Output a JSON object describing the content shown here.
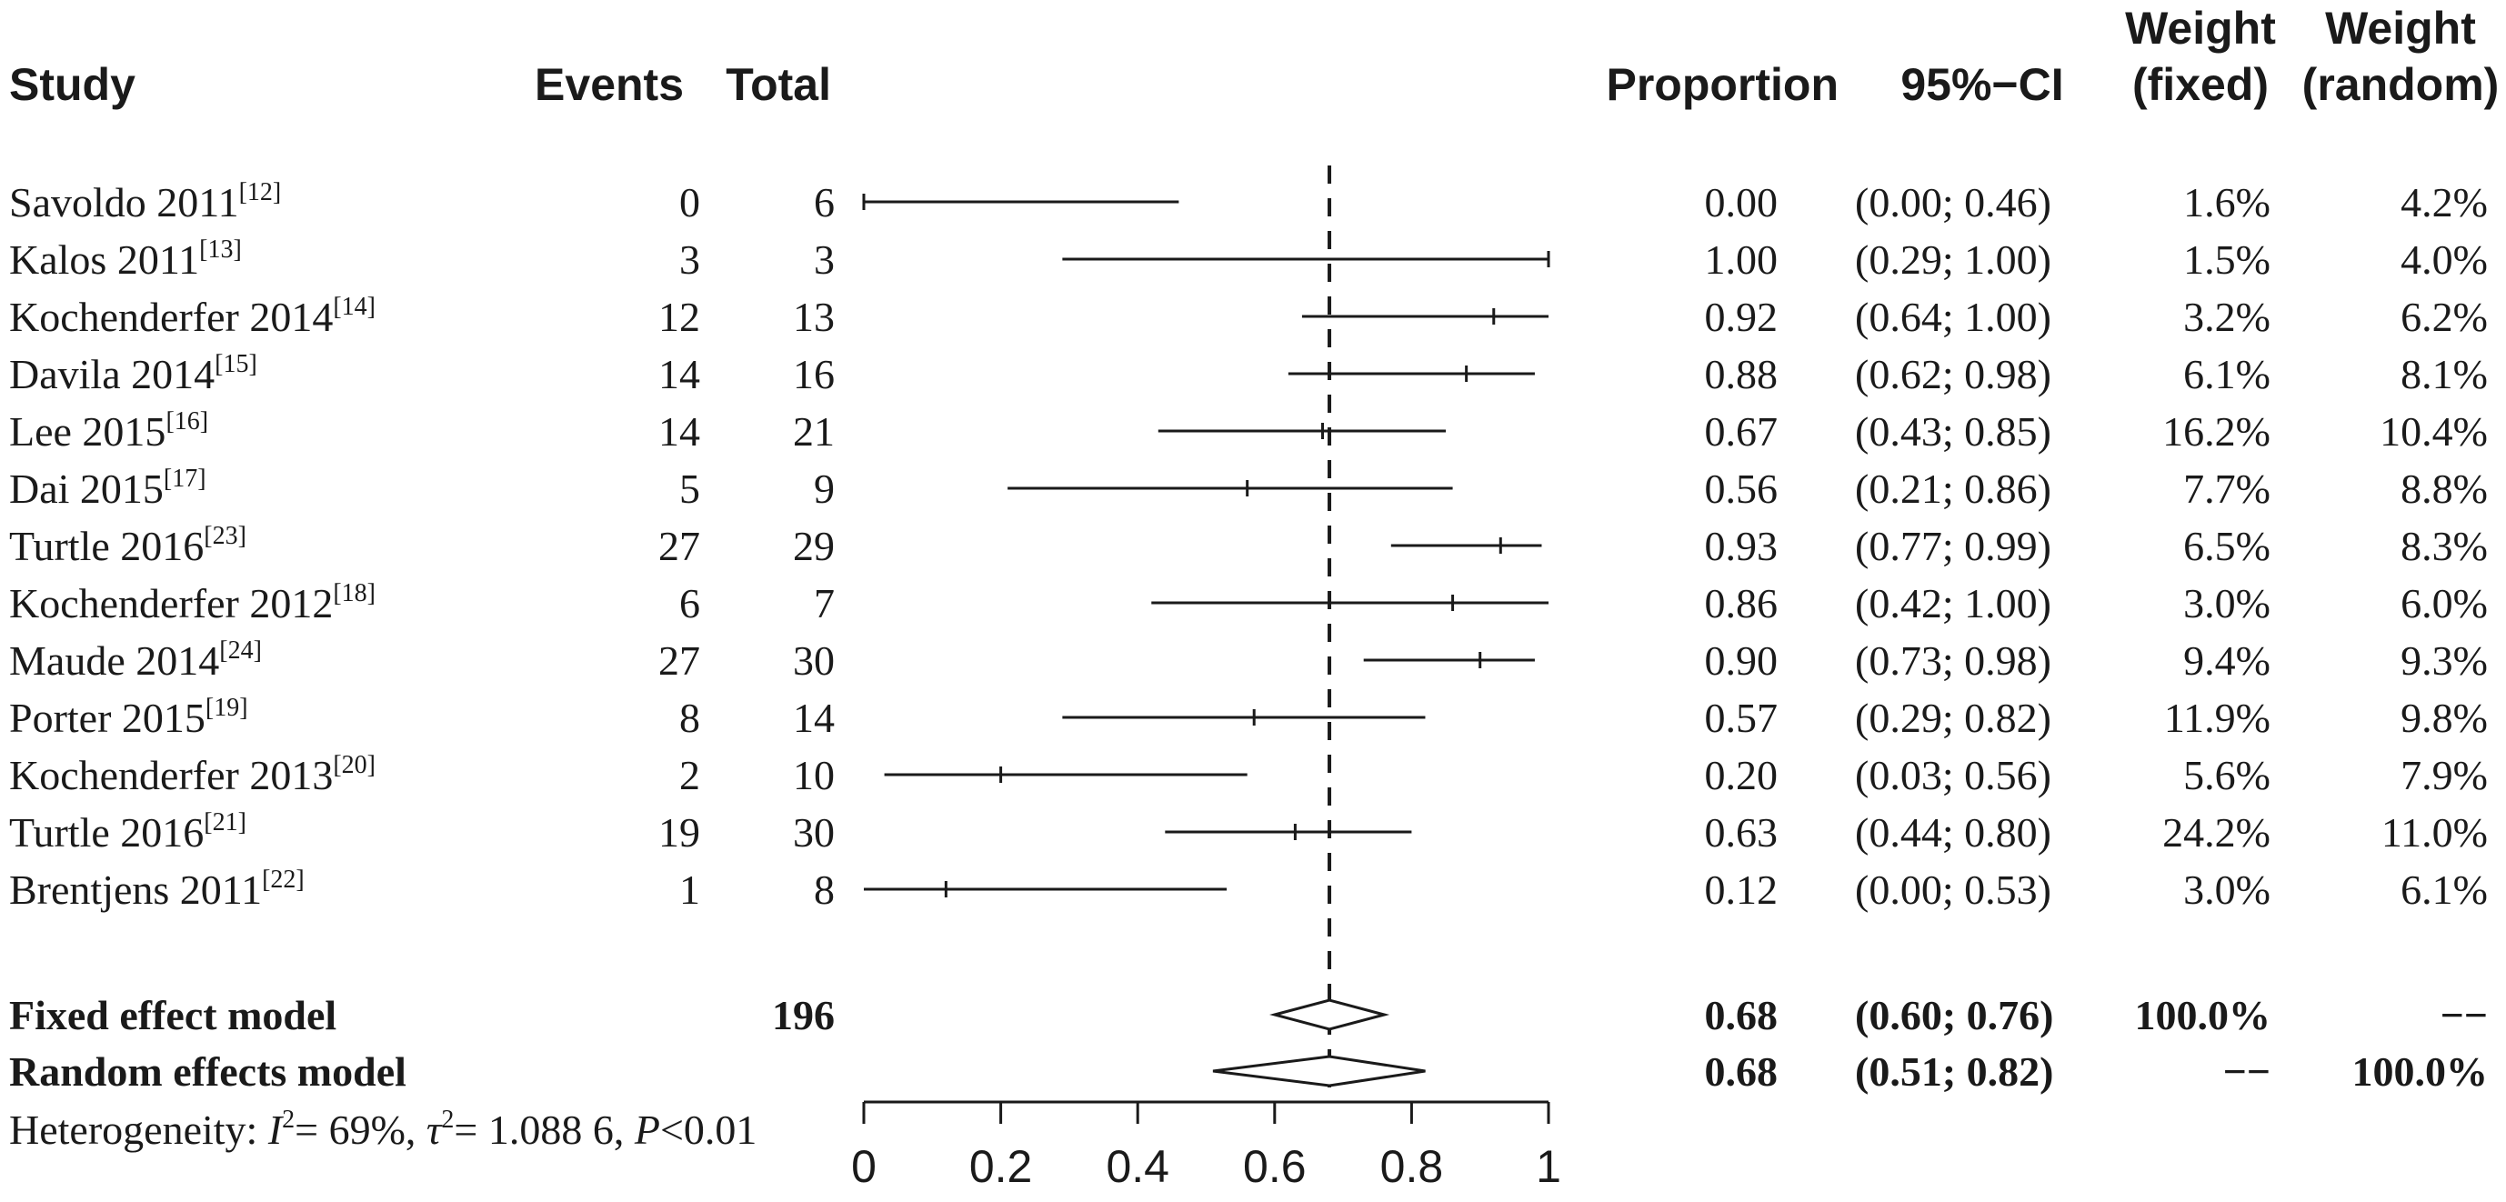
{
  "header": {
    "study": "Study",
    "events": "Events",
    "total": "Total",
    "proportion": "Proportion",
    "ci": "95%−CI",
    "weight_fixed_1": "Weight",
    "weight_fixed_2": "(fixed)",
    "weight_random_1": "Weight",
    "weight_random_2": "(random)"
  },
  "chart_data": {
    "type": "forest",
    "x_ticks": [
      "0",
      "0.2",
      "0.4",
      "0.6",
      "0.8",
      "1"
    ],
    "xlim": [
      0,
      1
    ],
    "reference_line": 0.68,
    "studies": [
      {
        "name": "Savoldo 2011",
        "ref": "[12]",
        "events": "0",
        "total": "6",
        "proportion": 0.0,
        "lower": 0.0,
        "upper": 0.46,
        "prop_text": "0.00",
        "ci_text": "(0.00; 0.46)",
        "w_fixed": "1.6%",
        "w_random": "4.2%"
      },
      {
        "name": "Kalos 2011",
        "ref": "[13]",
        "events": "3",
        "total": "3",
        "proportion": 1.0,
        "lower": 0.29,
        "upper": 1.0,
        "prop_text": "1.00",
        "ci_text": "(0.29; 1.00)",
        "w_fixed": "1.5%",
        "w_random": "4.0%"
      },
      {
        "name": "Kochenderfer 2014",
        "ref": "[14]",
        "events": "12",
        "total": "13",
        "proportion": 0.92,
        "lower": 0.64,
        "upper": 1.0,
        "prop_text": "0.92",
        "ci_text": "(0.64; 1.00)",
        "w_fixed": "3.2%",
        "w_random": "6.2%"
      },
      {
        "name": "Davila 2014",
        "ref": "[15]",
        "events": "14",
        "total": "16",
        "proportion": 0.88,
        "lower": 0.62,
        "upper": 0.98,
        "prop_text": "0.88",
        "ci_text": "(0.62; 0.98)",
        "w_fixed": "6.1%",
        "w_random": "8.1%"
      },
      {
        "name": "Lee 2015",
        "ref": "[16]",
        "events": "14",
        "total": "21",
        "proportion": 0.67,
        "lower": 0.43,
        "upper": 0.85,
        "prop_text": "0.67",
        "ci_text": "(0.43; 0.85)",
        "w_fixed": "16.2%",
        "w_random": "10.4%"
      },
      {
        "name": "Dai 2015",
        "ref": "[17]",
        "events": "5",
        "total": "9",
        "proportion": 0.56,
        "lower": 0.21,
        "upper": 0.86,
        "prop_text": "0.56",
        "ci_text": "(0.21; 0.86)",
        "w_fixed": "7.7%",
        "w_random": "8.8%"
      },
      {
        "name": "Turtle 2016",
        "ref": "[23]",
        "events": "27",
        "total": "29",
        "proportion": 0.93,
        "lower": 0.77,
        "upper": 0.99,
        "prop_text": "0.93",
        "ci_text": "(0.77; 0.99)",
        "w_fixed": "6.5%",
        "w_random": "8.3%"
      },
      {
        "name": "Kochenderfer 2012",
        "ref": "[18]",
        "events": "6",
        "total": "7",
        "proportion": 0.86,
        "lower": 0.42,
        "upper": 1.0,
        "prop_text": "0.86",
        "ci_text": "(0.42; 1.00)",
        "w_fixed": "3.0%",
        "w_random": "6.0%"
      },
      {
        "name": "Maude 2014",
        "ref": "[24]",
        "events": "27",
        "total": "30",
        "proportion": 0.9,
        "lower": 0.73,
        "upper": 0.98,
        "prop_text": "0.90",
        "ci_text": "(0.73; 0.98)",
        "w_fixed": "9.4%",
        "w_random": "9.3%"
      },
      {
        "name": "Porter 2015",
        "ref": "[19]",
        "events": "8",
        "total": "14",
        "proportion": 0.57,
        "lower": 0.29,
        "upper": 0.82,
        "prop_text": "0.57",
        "ci_text": "(0.29; 0.82)",
        "w_fixed": "11.9%",
        "w_random": "9.8%"
      },
      {
        "name": "Kochenderfer 2013",
        "ref": "[20]",
        "events": "2",
        "total": "10",
        "proportion": 0.2,
        "lower": 0.03,
        "upper": 0.56,
        "prop_text": "0.20",
        "ci_text": "(0.03; 0.56)",
        "w_fixed": "5.6%",
        "w_random": "7.9%"
      },
      {
        "name": "Turtle 2016",
        "ref": "[21]",
        "events": "19",
        "total": "30",
        "proportion": 0.63,
        "lower": 0.44,
        "upper": 0.8,
        "prop_text": "0.63",
        "ci_text": "(0.44; 0.80)",
        "w_fixed": "24.2%",
        "w_random": "11.0%"
      },
      {
        "name": "Brentjens 2011",
        "ref": "[22]",
        "events": "1",
        "total": "8",
        "proportion": 0.12,
        "lower": 0.0,
        "upper": 0.53,
        "prop_text": "0.12",
        "ci_text": "(0.00; 0.53)",
        "w_fixed": "3.0%",
        "w_random": "6.1%"
      }
    ],
    "summary": [
      {
        "name": "Fixed effect model",
        "total": "196",
        "estimate": 0.68,
        "lower": 0.6,
        "upper": 0.76,
        "prop_text": "0.68",
        "ci_text": "(0.60; 0.76)",
        "w_fixed": "100.0%",
        "w_random": "−−"
      },
      {
        "name": "Random effects model",
        "total": "",
        "estimate": 0.68,
        "lower": 0.51,
        "upper": 0.82,
        "prop_text": "0.68",
        "ci_text": "(0.51; 0.82)",
        "w_fixed": "−−",
        "w_random": "100.0%"
      }
    ],
    "heterogeneity": {
      "label": "Heterogeneity: ",
      "i2_symbol": "I",
      "i2_sup": "2",
      "i2_value": "= 69%, ",
      "tau2_symbol": "τ",
      "tau2_sup": "2",
      "tau2_value": "= 1.088 6, ",
      "p_symbol": "P",
      "p_value": "<0.01"
    }
  }
}
